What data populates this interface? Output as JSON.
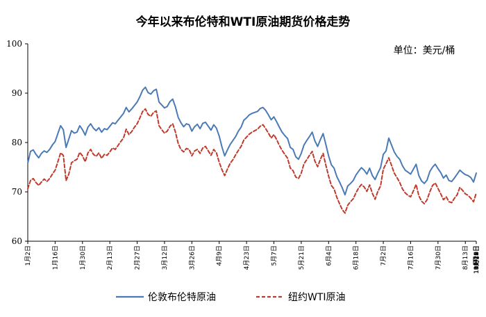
{
  "chart_data": {
    "type": "line",
    "title": "今年以来布伦特和WTI原油期货价格走势",
    "unit_label": "单位：美元/桶",
    "xlabel": "",
    "ylabel": "",
    "ylim": [
      60,
      100
    ],
    "yticks": [
      "60",
      "70",
      "80",
      "90",
      "100"
    ],
    "grid": false,
    "legend_position": "bottom",
    "x_tick_labels": [
      "1月2日",
      "1月16日",
      "1月30日",
      "2月13日",
      "2月27日",
      "3月12日",
      "3月26日",
      "4月9日",
      "4月23日",
      "5月7日",
      "5月21日",
      "6月4日",
      "6月18日",
      "7月2日",
      "7月16日",
      "7月30日",
      "8月13日",
      "8月27日",
      "9月10日",
      "9月24日",
      "10月8日",
      "10月22日",
      "11月5日",
      "11月19日",
      "12月3日"
    ],
    "tick_every": 10,
    "series": [
      {
        "name": "伦敦布伦特原油",
        "color": "#4a7ab5",
        "style": "solid",
        "values": [
          75.8,
          78.2,
          78.5,
          77.6,
          76.9,
          77.8,
          78.3,
          78.0,
          78.6,
          79.5,
          80.2,
          81.8,
          83.4,
          82.6,
          79.0,
          80.7,
          82.4,
          81.9,
          82.1,
          83.4,
          82.6,
          81.5,
          83.1,
          83.8,
          82.9,
          82.4,
          83.0,
          82.1,
          82.8,
          82.6,
          83.3,
          84.0,
          83.8,
          84.5,
          85.2,
          85.9,
          87.1,
          86.2,
          86.8,
          87.5,
          88.2,
          89.3,
          90.6,
          91.2,
          90.1,
          89.8,
          90.5,
          90.8,
          88.2,
          87.6,
          87.0,
          87.3,
          88.3,
          88.8,
          87.2,
          85.1,
          84.0,
          83.2,
          83.8,
          83.6,
          82.3,
          83.2,
          83.7,
          82.8,
          83.9,
          84.1,
          83.3,
          82.5,
          83.6,
          82.9,
          81.3,
          79.1,
          77.3,
          78.5,
          79.6,
          80.4,
          81.2,
          82.3,
          83.1,
          84.5,
          85.0,
          85.6,
          85.9,
          86.1,
          86.3,
          86.9,
          87.1,
          86.5,
          85.6,
          84.6,
          85.2,
          84.2,
          83.1,
          82.1,
          81.4,
          80.8,
          79.0,
          78.6,
          77.1,
          76.6,
          77.8,
          79.5,
          80.4,
          81.2,
          82.1,
          80.3,
          79.2,
          80.6,
          81.8,
          79.6,
          77.3,
          75.5,
          74.8,
          73.1,
          72.0,
          70.8,
          69.4,
          71.2,
          71.7,
          72.3,
          73.4,
          74.2,
          74.9,
          74.4,
          73.6,
          74.8,
          73.3,
          72.5,
          73.8,
          74.9,
          77.6,
          78.3,
          80.9,
          79.5,
          78.1,
          77.2,
          76.6,
          75.3,
          74.4,
          74.0,
          73.6,
          74.6,
          75.6,
          73.3,
          72.2,
          71.7,
          72.4,
          74.1,
          75.0,
          75.6,
          74.7,
          73.9,
          72.8,
          73.4,
          72.3,
          72.1,
          72.8,
          73.6,
          74.4,
          73.9,
          73.5,
          73.3,
          72.9,
          72.0,
          73.8
        ]
      },
      {
        "name": "纽约WTI原油",
        "color": "#c0392b",
        "style": "dashed",
        "values": [
          70.6,
          72.3,
          72.7,
          71.9,
          71.3,
          72.0,
          72.6,
          72.1,
          72.7,
          73.6,
          74.4,
          76.1,
          77.9,
          77.4,
          72.3,
          73.6,
          75.9,
          76.3,
          76.6,
          78.0,
          77.3,
          76.1,
          77.9,
          78.6,
          77.6,
          77.2,
          77.9,
          76.8,
          77.6,
          77.4,
          78.1,
          78.9,
          78.6,
          79.4,
          80.2,
          80.9,
          82.7,
          81.6,
          82.2,
          83.1,
          83.8,
          85.0,
          86.3,
          86.8,
          85.7,
          85.3,
          86.1,
          86.4,
          83.4,
          82.6,
          81.9,
          82.3,
          83.3,
          83.8,
          82.1,
          79.8,
          78.6,
          78.1,
          78.8,
          78.6,
          77.3,
          78.3,
          78.6,
          77.8,
          78.9,
          79.2,
          78.3,
          77.4,
          78.6,
          77.9,
          76.0,
          74.5,
          73.3,
          74.6,
          75.8,
          76.5,
          77.5,
          78.4,
          79.2,
          80.5,
          81.1,
          81.7,
          82.1,
          82.4,
          82.7,
          83.3,
          83.6,
          82.8,
          81.9,
          80.9,
          81.6,
          80.6,
          79.4,
          78.4,
          77.6,
          76.8,
          74.8,
          74.3,
          73.0,
          72.7,
          73.8,
          75.7,
          76.5,
          77.4,
          78.2,
          76.2,
          75.1,
          76.6,
          77.8,
          75.4,
          73.2,
          71.3,
          70.6,
          68.9,
          67.6,
          66.4,
          65.7,
          67.3,
          68.0,
          68.6,
          69.8,
          70.8,
          71.5,
          71.0,
          70.1,
          71.4,
          69.7,
          68.5,
          70.1,
          71.2,
          74.6,
          75.7,
          76.9,
          75.4,
          73.8,
          72.9,
          71.9,
          70.6,
          69.8,
          69.3,
          69.0,
          70.2,
          71.5,
          69.2,
          68.1,
          67.6,
          68.4,
          70.0,
          71.3,
          71.8,
          70.7,
          69.6,
          68.4,
          69.0,
          68.0,
          67.8,
          68.7,
          69.4,
          70.9,
          70.3,
          69.6,
          69.3,
          68.7,
          68.0,
          69.8
        ]
      }
    ]
  }
}
